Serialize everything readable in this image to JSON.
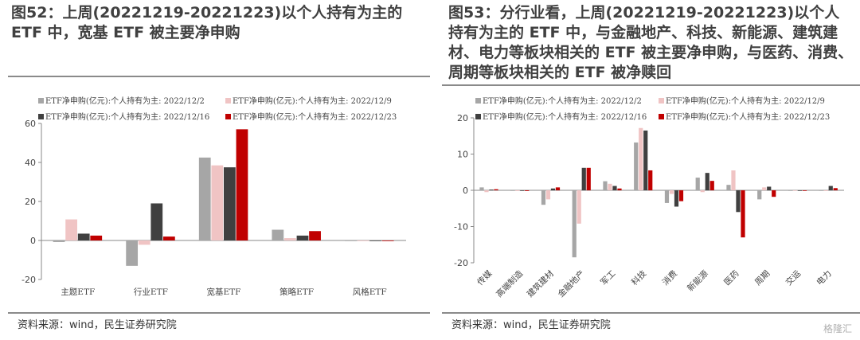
{
  "left": {
    "title": "图52：上周(20221219-20221223)以个人持有为主的 ETF 中，宽基 ETF 被主要净申购",
    "source": "资料来源：wind，民生证券研究院"
  },
  "right": {
    "title": "图53：分行业看，上周(20221219-20221223)以个人持有为主的 ETF 中，与金融地产、科技、新能源、建筑建材、电力等板块相关的 ETF 被主要净申购，与医药、消费、周期等板块相关的 ETF 被净赎回",
    "source": "资料来源：wind，民生证券研究院"
  },
  "watermark": "格隆汇",
  "colors": {
    "s1": "#a6a6a6",
    "s2": "#f0c4c4",
    "s3": "#404040",
    "s4": "#c00000"
  },
  "chart_data": [
    {
      "type": "bar",
      "categories": [
        "主题ETF",
        "行业ETF",
        "宽基ETF",
        "策略ETF",
        "风格ETF"
      ],
      "series": [
        {
          "name": "ETF净申购(亿元):个人持有为主: 2022/12/2",
          "values": [
            -0.8,
            -13,
            42.5,
            5.5,
            -0.3
          ]
        },
        {
          "name": "ETF净申购(亿元):个人持有为主: 2022/12/9",
          "values": [
            10.8,
            -2.2,
            38.5,
            1.2,
            -0.2
          ]
        },
        {
          "name": "ETF净申购(亿元):个人持有为主: 2022/12/16",
          "values": [
            3.5,
            19,
            37.5,
            2.5,
            -0.2
          ]
        },
        {
          "name": "ETF净申购(亿元):个人持有为主: 2022/12/23",
          "values": [
            2.5,
            2,
            57,
            4.8,
            -0.1
          ]
        }
      ],
      "yticks": [
        -20,
        0,
        20,
        40,
        60
      ],
      "ylim": [
        -20,
        60
      ]
    },
    {
      "type": "bar",
      "categories": [
        "传媒",
        "高端制造",
        "建筑建材",
        "金融地产",
        "军工",
        "科技",
        "消费",
        "新能源",
        "医药",
        "周期",
        "交运",
        "电力"
      ],
      "series": [
        {
          "name": "ETF净申购(亿元):个人持有为主: 2022/12/2",
          "values": [
            0.8,
            0,
            -4,
            -18.5,
            2.5,
            13.2,
            -3.5,
            3.5,
            1.5,
            -2.5,
            0,
            0
          ]
        },
        {
          "name": "ETF净申购(亿元):个人持有为主: 2022/12/9",
          "values": [
            -0.5,
            -0.2,
            -2.5,
            -9.2,
            1.8,
            17.2,
            -1,
            -0.5,
            5.5,
            0.8,
            0,
            -0.2
          ]
        },
        {
          "name": "ETF净申购(亿元):个人持有为主: 2022/12/16",
          "values": [
            0.2,
            0,
            0.5,
            6.2,
            1.2,
            16.5,
            -4.5,
            4.8,
            -6,
            1,
            0,
            1.2
          ]
        },
        {
          "name": "ETF净申购(亿元):个人持有为主: 2022/12/23",
          "values": [
            0.3,
            -0.2,
            0.8,
            6.2,
            0.5,
            5.5,
            -3,
            2.6,
            -13,
            -1.8,
            0,
            0.6
          ]
        }
      ],
      "yticks": [
        -20,
        -10,
        0,
        10,
        20
      ],
      "ylim": [
        -20,
        20
      ]
    }
  ]
}
